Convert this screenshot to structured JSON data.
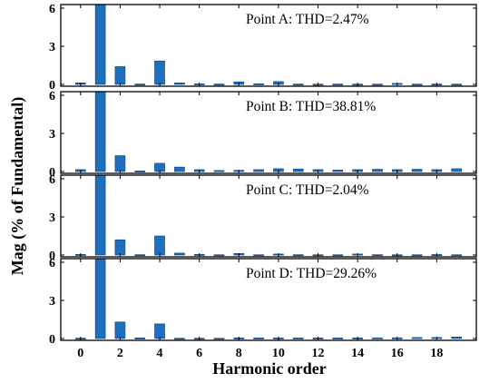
{
  "chart_data": {
    "type": "bar",
    "xlabel": "Harmonic order",
    "ylabel": "Mag (% of Fundamental)",
    "x_ticks": [
      0,
      2,
      4,
      6,
      8,
      10,
      12,
      14,
      16,
      18
    ],
    "y_ticks": [
      0,
      3,
      6
    ],
    "ylim": [
      0,
      6
    ],
    "xlim": [
      -1,
      20
    ],
    "bar_color": "#1f6fbf",
    "panels": [
      {
        "annotation": "Point A: THD=2.47%",
        "harmonics": [
          0,
          1,
          2,
          3,
          4,
          5,
          6,
          7,
          8,
          9,
          10,
          11,
          12,
          13,
          14,
          15,
          16,
          17,
          18,
          19
        ],
        "values": [
          0.12,
          6.3,
          1.4,
          0.03,
          1.85,
          0.12,
          0.05,
          0.03,
          0.2,
          0.05,
          0.22,
          0.03,
          0.02,
          0.03,
          0.02,
          0.02,
          0.08,
          0.02,
          0.03,
          0.02
        ]
      },
      {
        "annotation": "Point B: THD=38.81%",
        "harmonics": [
          0,
          1,
          2,
          3,
          4,
          5,
          6,
          7,
          8,
          9,
          10,
          11,
          12,
          13,
          14,
          15,
          16,
          17,
          18,
          19
        ],
        "values": [
          0.15,
          6.3,
          1.25,
          0.05,
          0.65,
          0.35,
          0.15,
          0.08,
          0.1,
          0.15,
          0.22,
          0.2,
          0.15,
          0.12,
          0.15,
          0.18,
          0.15,
          0.18,
          0.15,
          0.22
        ]
      },
      {
        "annotation": "Point C: THD=2.04%",
        "harmonics": [
          0,
          1,
          2,
          3,
          4,
          5,
          6,
          7,
          8,
          9,
          10,
          11,
          12,
          13,
          14,
          15,
          16,
          17,
          18,
          19
        ],
        "values": [
          0.05,
          6.3,
          1.2,
          0.03,
          1.5,
          0.15,
          0.05,
          0.02,
          0.12,
          0.02,
          0.08,
          0.03,
          0.02,
          0.02,
          0.08,
          0.03,
          0.02,
          0.02,
          0.04,
          0.02
        ]
      },
      {
        "annotation": "Point D: THD=29.26%",
        "harmonics": [
          0,
          1,
          2,
          3,
          4,
          5,
          6,
          7,
          8,
          9,
          10,
          11,
          12,
          13,
          14,
          15,
          16,
          17,
          18,
          19
        ],
        "values": [
          0.03,
          6.3,
          1.3,
          0.05,
          1.15,
          0.02,
          0.02,
          0.02,
          0.05,
          0.05,
          0.05,
          0.05,
          0.05,
          0.05,
          0.05,
          0.06,
          0.06,
          0.08,
          0.08,
          0.12
        ]
      }
    ]
  }
}
